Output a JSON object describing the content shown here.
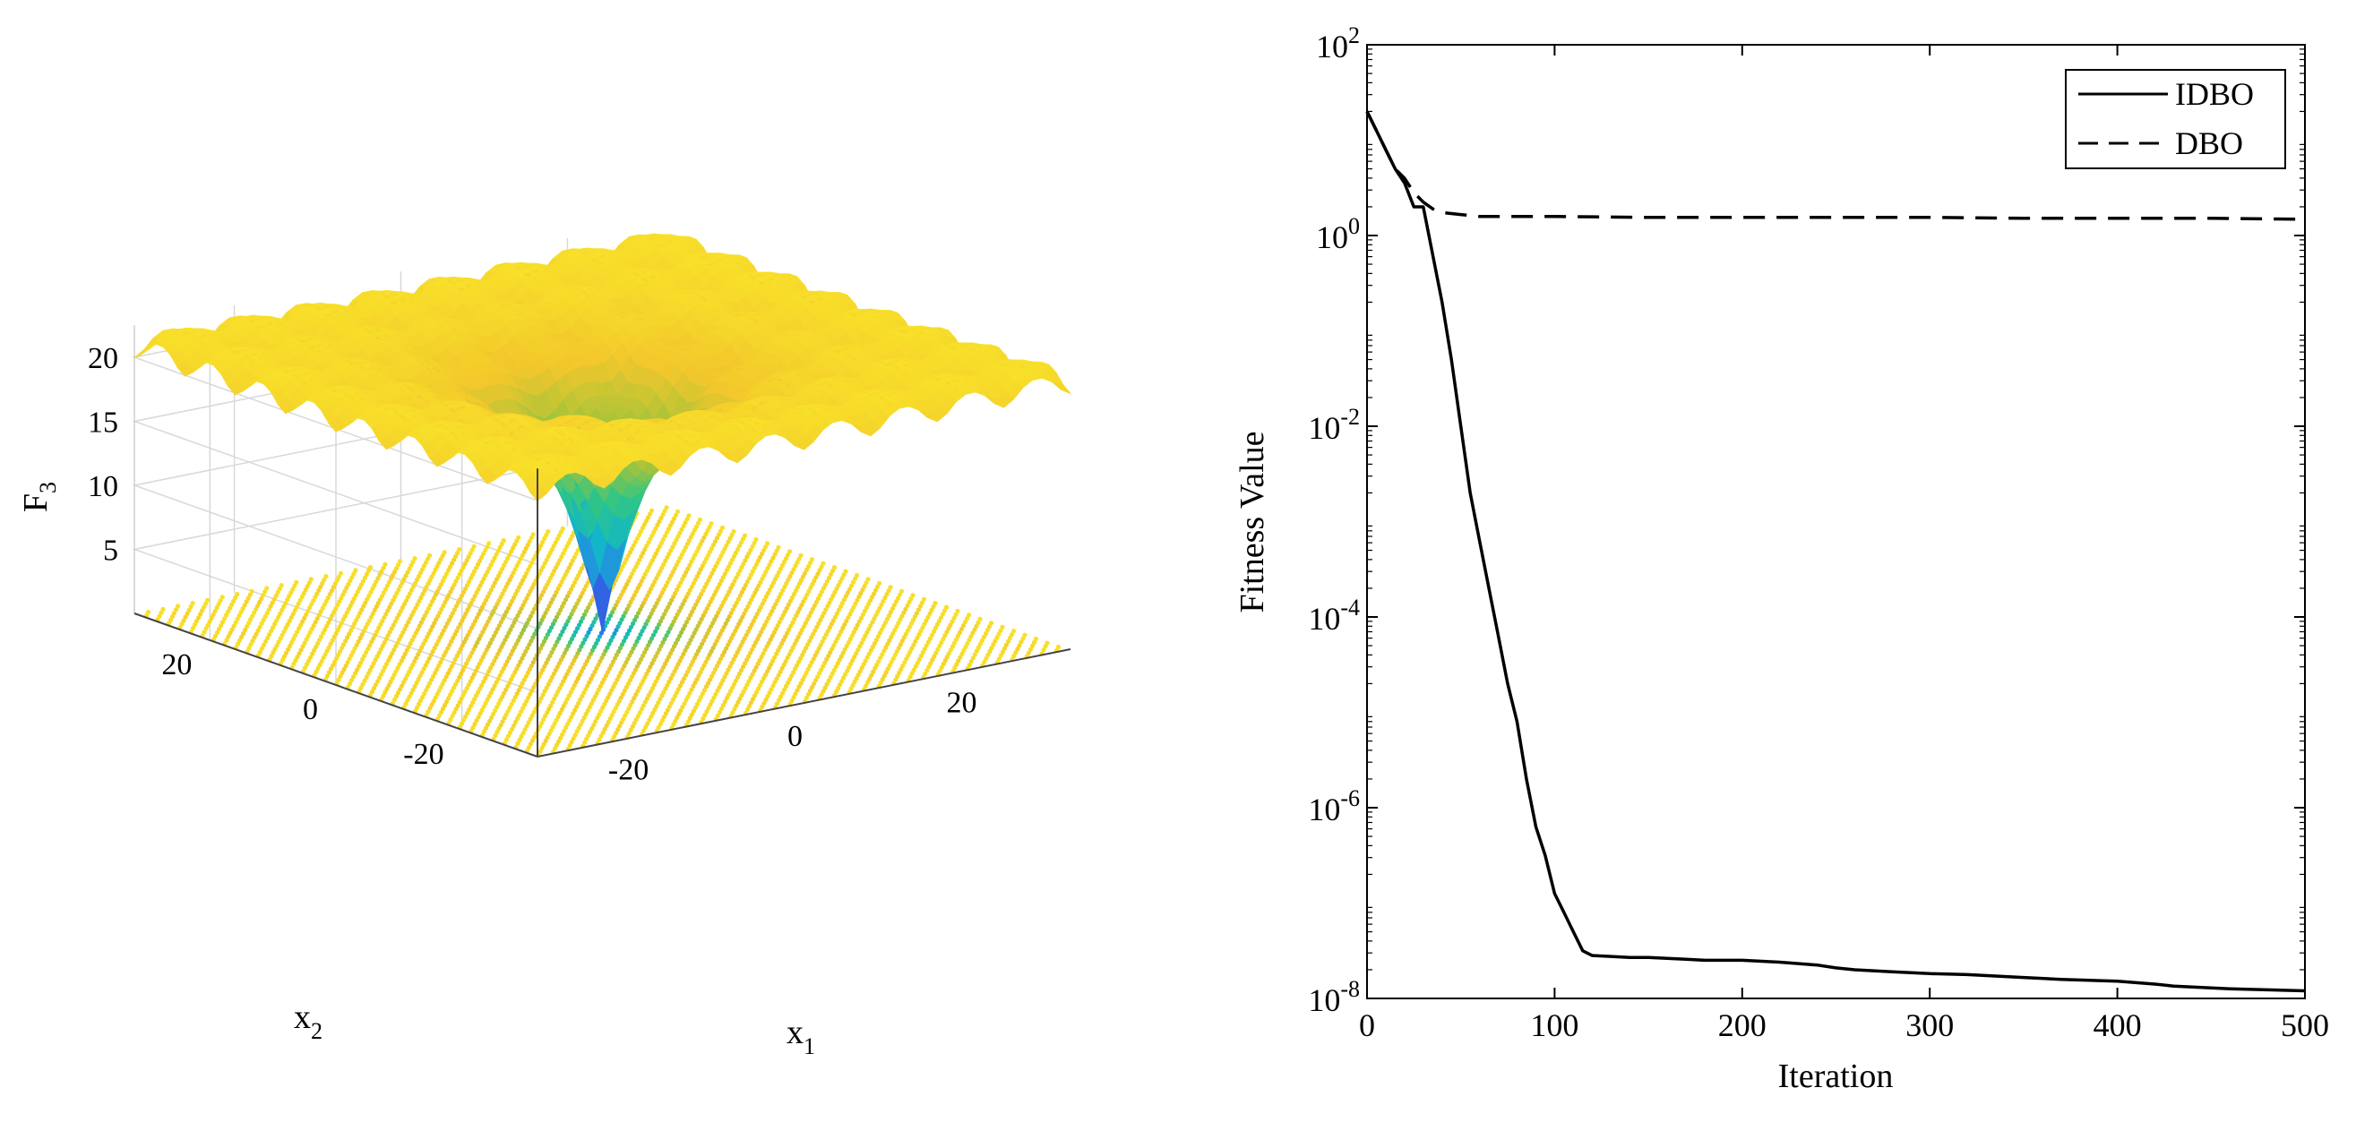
{
  "chart_data": [
    {
      "type": "surface3d",
      "title": "",
      "zlabel_base": "F",
      "zlabel_sub": "3",
      "xlabel_base": "x",
      "xlabel_sub": "1",
      "ylabel_base": "x",
      "ylabel_sub": "2",
      "x_range": [
        -32,
        32
      ],
      "y_range": [
        -32,
        32
      ],
      "z_range": [
        0,
        22
      ],
      "z_ticks": [
        "5",
        "10",
        "15",
        "20"
      ],
      "x_ticks": [
        "-20",
        "0",
        "20"
      ],
      "y_ticks": [
        "-20",
        "0",
        "20"
      ],
      "function": "Ackley",
      "colormap": [
        "#3e26a8",
        "#2e73f0",
        "#12b6c8",
        "#2fc586",
        "#a6c43a",
        "#f2c72c",
        "#f8e02a"
      ],
      "contour_projection": true
    },
    {
      "type": "line",
      "yscale": "log",
      "title": "",
      "xlabel": "Iteration",
      "ylabel": "Fitness Value",
      "xlim": [
        0,
        500
      ],
      "ylim_exp": [
        -8,
        2
      ],
      "x_ticks": [
        "0",
        "100",
        "200",
        "300",
        "400",
        "500"
      ],
      "y_tick_base": "10",
      "y_tick_exps": [
        "2",
        "0",
        "-2",
        "-4",
        "-6",
        "-8"
      ],
      "legend_position": "top-right",
      "series": [
        {
          "name": "IDBO",
          "style": "solid",
          "x": [
            0,
            5,
            10,
            15,
            20,
            25,
            30,
            35,
            40,
            45,
            50,
            55,
            60,
            65,
            70,
            75,
            80,
            85,
            90,
            95,
            100,
            105,
            110,
            115,
            120,
            130,
            140,
            150,
            160,
            170,
            180,
            190,
            200,
            220,
            240,
            250,
            260,
            280,
            300,
            320,
            350,
            370,
            400,
            420,
            430,
            440,
            450,
            460,
            480,
            500
          ],
          "y_log10": [
            1.3,
            1.1,
            0.9,
            0.7,
            0.55,
            0.3,
            0.3,
            -0.2,
            -0.7,
            -1.3,
            -2.0,
            -2.7,
            -3.2,
            -3.7,
            -4.2,
            -4.7,
            -5.1,
            -5.7,
            -6.2,
            -6.5,
            -6.9,
            -7.1,
            -7.3,
            -7.5,
            -7.55,
            -7.56,
            -7.57,
            -7.57,
            -7.58,
            -7.59,
            -7.6,
            -7.6,
            -7.6,
            -7.62,
            -7.65,
            -7.68,
            -7.7,
            -7.72,
            -7.74,
            -7.75,
            -7.78,
            -7.8,
            -7.82,
            -7.85,
            -7.87,
            -7.88,
            -7.89,
            -7.9,
            -7.91,
            -7.92
          ]
        },
        {
          "name": "DBO",
          "style": "dashed",
          "x": [
            0,
            5,
            10,
            15,
            20,
            25,
            30,
            35,
            40,
            45,
            50,
            60,
            80,
            100,
            150,
            200,
            250,
            300,
            350,
            400,
            450,
            500
          ],
          "y_log10": [
            1.3,
            1.1,
            0.9,
            0.7,
            0.6,
            0.45,
            0.35,
            0.28,
            0.24,
            0.23,
            0.22,
            0.2,
            0.2,
            0.2,
            0.19,
            0.19,
            0.19,
            0.19,
            0.18,
            0.18,
            0.18,
            0.17
          ]
        }
      ]
    }
  ]
}
